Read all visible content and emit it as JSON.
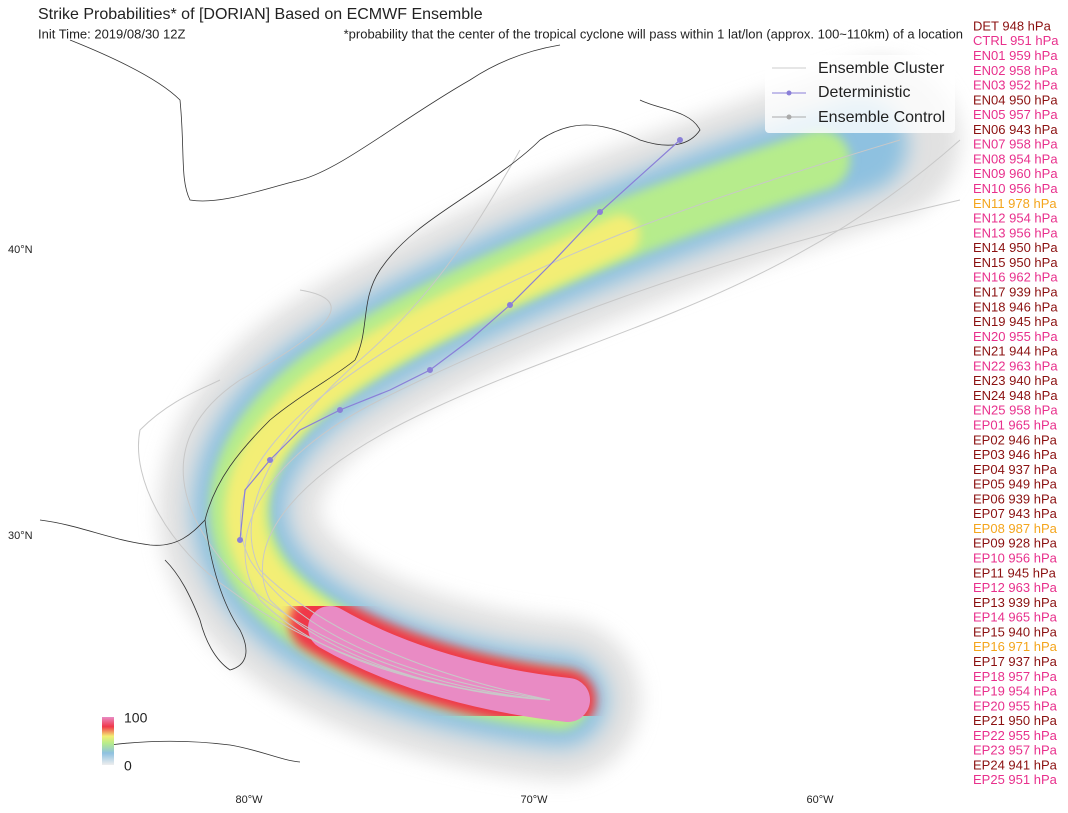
{
  "header": {
    "title": "Strike Probabilities* of [DORIAN] Based on ECMWF Ensemble",
    "subtitle": "Init Time: 2019/08/30 12Z",
    "note": "*probability that the center of the tropical cyclone will pass within 1 lat/lon (approx. 100~110km) of a location"
  },
  "legend": [
    "Ensemble Cluster",
    "Deterministic",
    "Ensemble Control"
  ],
  "colorbar": {
    "max": "100",
    "min": "0"
  },
  "axes": {
    "lat": [
      "40°N",
      "30°N"
    ],
    "lon": [
      "80°W",
      "70°W",
      "60°W"
    ]
  },
  "members": [
    {
      "label": "DET 948 hPa",
      "color": "#8b1010"
    },
    {
      "label": "CTRL 951 hPa",
      "color": "#e8308c"
    },
    {
      "label": "EN01 959 hPa",
      "color": "#e8308c"
    },
    {
      "label": "EN02 958 hPa",
      "color": "#e8308c"
    },
    {
      "label": "EN03 952 hPa",
      "color": "#e8308c"
    },
    {
      "label": "EN04 950 hPa",
      "color": "#8b1010"
    },
    {
      "label": "EN05 957 hPa",
      "color": "#e8308c"
    },
    {
      "label": "EN06 943 hPa",
      "color": "#8b1010"
    },
    {
      "label": "EN07 958 hPa",
      "color": "#e8308c"
    },
    {
      "label": "EN08 954 hPa",
      "color": "#e8308c"
    },
    {
      "label": "EN09 960 hPa",
      "color": "#e8308c"
    },
    {
      "label": "EN10 956 hPa",
      "color": "#e8308c"
    },
    {
      "label": "EN11 978 hPa",
      "color": "#f4a51c"
    },
    {
      "label": "EN12 954 hPa",
      "color": "#e8308c"
    },
    {
      "label": "EN13 956 hPa",
      "color": "#e8308c"
    },
    {
      "label": "EN14 950 hPa",
      "color": "#8b1010"
    },
    {
      "label": "EN15 950 hPa",
      "color": "#8b1010"
    },
    {
      "label": "EN16 962 hPa",
      "color": "#e8308c"
    },
    {
      "label": "EN17 939 hPa",
      "color": "#8b1010"
    },
    {
      "label": "EN18 946 hPa",
      "color": "#8b1010"
    },
    {
      "label": "EN19 945 hPa",
      "color": "#8b1010"
    },
    {
      "label": "EN20 955 hPa",
      "color": "#e8308c"
    },
    {
      "label": "EN21 944 hPa",
      "color": "#8b1010"
    },
    {
      "label": "EN22 963 hPa",
      "color": "#e8308c"
    },
    {
      "label": "EN23 940 hPa",
      "color": "#8b1010"
    },
    {
      "label": "EN24 948 hPa",
      "color": "#8b1010"
    },
    {
      "label": "EN25 958 hPa",
      "color": "#e8308c"
    },
    {
      "label": "EP01 965 hPa",
      "color": "#e8308c"
    },
    {
      "label": "EP02 946 hPa",
      "color": "#8b1010"
    },
    {
      "label": "EP03 946 hPa",
      "color": "#8b1010"
    },
    {
      "label": "EP04 937 hPa",
      "color": "#8b1010"
    },
    {
      "label": "EP05 949 hPa",
      "color": "#8b1010"
    },
    {
      "label": "EP06 939 hPa",
      "color": "#8b1010"
    },
    {
      "label": "EP07 943 hPa",
      "color": "#8b1010"
    },
    {
      "label": "EP08 987 hPa",
      "color": "#f4a51c"
    },
    {
      "label": "EP09 928 hPa",
      "color": "#8b1010"
    },
    {
      "label": "EP10 956 hPa",
      "color": "#e8308c"
    },
    {
      "label": "EP11 945 hPa",
      "color": "#8b1010"
    },
    {
      "label": "EP12 963 hPa",
      "color": "#e8308c"
    },
    {
      "label": "EP13 939 hPa",
      "color": "#8b1010"
    },
    {
      "label": "EP14 965 hPa",
      "color": "#e8308c"
    },
    {
      "label": "EP15 940 hPa",
      "color": "#8b1010"
    },
    {
      "label": "EP16 971 hPa",
      "color": "#f4a51c"
    },
    {
      "label": "EP17 937 hPa",
      "color": "#8b1010"
    },
    {
      "label": "EP18 957 hPa",
      "color": "#e8308c"
    },
    {
      "label": "EP19 954 hPa",
      "color": "#e8308c"
    },
    {
      "label": "EP20 955 hPa",
      "color": "#e8308c"
    },
    {
      "label": "EP21 950 hPa",
      "color": "#8b1010"
    },
    {
      "label": "EP22 955 hPa",
      "color": "#e8308c"
    },
    {
      "label": "EP23 957 hPa",
      "color": "#e8308c"
    },
    {
      "label": "EP24 941 hPa",
      "color": "#8b1010"
    },
    {
      "label": "EP25 951 hPa",
      "color": "#e8308c"
    }
  ]
}
